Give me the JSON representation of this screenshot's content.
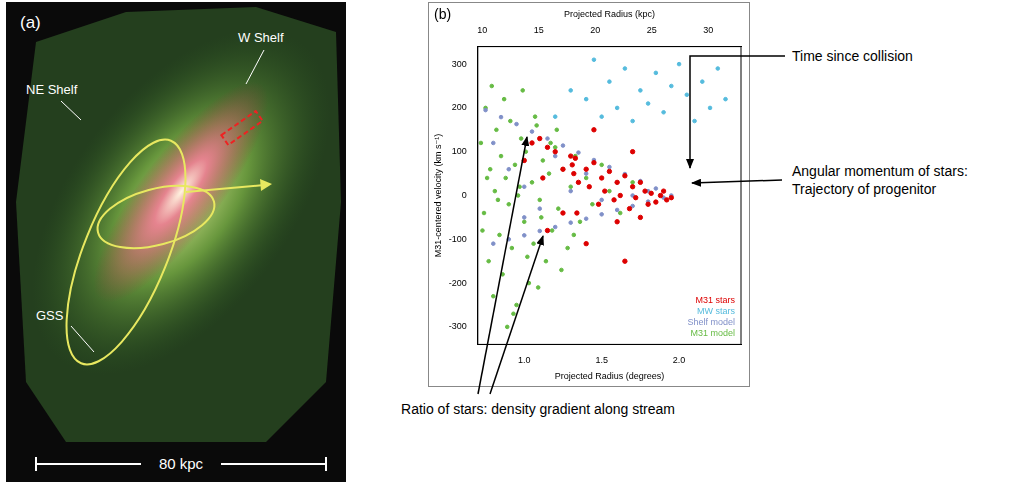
{
  "panel_a": {
    "label": "(a)",
    "labels": {
      "ne": "NE Shelf",
      "w": "W Shelf",
      "gss": "GSS"
    },
    "scale_bar": "80 kpc"
  },
  "chart_data": {
    "type": "scatter",
    "label": "(b)",
    "x_label": "Projected Radius (degrees)",
    "x2_label": "Projected Radius (kpc)",
    "y_label": "M31-centered velocity (km s⁻¹)",
    "xlim": [
      0.7,
      2.4
    ],
    "xticks": [
      {
        "value": 1,
        "label": "1.0"
      },
      {
        "value": 1.5,
        "label": "1.5"
      },
      {
        "value": 2,
        "label": "2.0"
      }
    ],
    "x2lim": [
      9.6,
      32.9
    ],
    "x2ticks": [
      10,
      15,
      20,
      25,
      30
    ],
    "ylim": [
      -340,
      340
    ],
    "yticks": [
      -300,
      -200,
      -100,
      0,
      100,
      200,
      300
    ],
    "grid": false,
    "legend": "lower right",
    "series": [
      {
        "name": "M31 stars",
        "color": "#dd0000",
        "x": [
          1.0,
          1.05,
          1.1,
          1.12,
          1.15,
          1.2,
          1.25,
          1.3,
          1.31,
          1.32,
          1.33,
          1.34,
          1.35,
          1.4,
          1.42,
          1.45,
          1.48,
          1.5,
          1.52,
          1.55,
          1.58,
          1.6,
          1.62,
          1.65,
          1.68,
          1.7,
          1.72,
          1.75,
          1.78,
          1.8,
          1.82,
          1.85,
          1.88,
          1.9,
          1.92,
          1.95,
          1.75,
          1.6,
          1.45,
          1.7,
          1.4,
          1.65,
          1.25,
          1.15
        ],
        "values": [
          80,
          120,
          130,
          40,
          110,
          100,
          60,
          90,
          70,
          50,
          85,
          -40,
          30,
          60,
          20,
          75,
          -20,
          40,
          10,
          55,
          -10,
          30,
          0,
          45,
          -30,
          20,
          -5,
          30,
          10,
          -20,
          5,
          -15,
          0,
          10,
          -10,
          -5,
          -50,
          -60,
          150,
          100,
          -110,
          -150,
          -40,
          -80
        ]
      },
      {
        "name": "MW stars",
        "color": "#55bbdd",
        "x": [
          1.4,
          1.5,
          1.55,
          1.6,
          1.65,
          1.7,
          1.75,
          1.8,
          1.85,
          1.9,
          1.95,
          2.0,
          2.05,
          2.1,
          2.15,
          2.2,
          2.25,
          1.3,
          1.2,
          2.3,
          1.45
        ],
        "values": [
          220,
          180,
          260,
          200,
          290,
          170,
          240,
          210,
          280,
          190,
          250,
          300,
          230,
          170,
          260,
          200,
          290,
          240,
          180,
          220,
          310
        ]
      },
      {
        "name": "Shelf model",
        "color": "#8090c8",
        "x": [
          0.75,
          0.85,
          0.95,
          1.05,
          1.15,
          1.25,
          1.35,
          1.45,
          1.55,
          1.65,
          1.75,
          1.85,
          1.95,
          0.8,
          0.9,
          1.0,
          1.1,
          1.2,
          1.3,
          1.4,
          1.5,
          1.6,
          1.7,
          1.8,
          1.9,
          0.9,
          1.0,
          1.1,
          1.2,
          1.3,
          1.4,
          1.5,
          1.6,
          1.7,
          1.8,
          0.8,
          1.0
        ],
        "values": [
          195,
          179,
          163,
          146,
          130,
          114,
          98,
          81,
          65,
          49,
          33,
          16,
          0,
          -110,
          -100,
          -91,
          -81,
          -72,
          -62,
          -53,
          -43,
          -33,
          -24,
          -14,
          -5,
          60,
          20,
          -30,
          90,
          10,
          50,
          -10,
          30,
          0,
          10,
          120,
          -50
        ]
      },
      {
        "name": "M31 model",
        "color": "#66bb44",
        "x": [
          0.72,
          0.74,
          0.75,
          0.77,
          0.78,
          0.8,
          0.81,
          0.82,
          0.84,
          0.85,
          0.86,
          0.88,
          0.9,
          0.91,
          0.92,
          0.94,
          0.95,
          0.97,
          0.98,
          1.0,
          1.01,
          1.03,
          1.05,
          1.06,
          1.08,
          1.1,
          1.12,
          1.14,
          1.16,
          1.18,
          1.2,
          1.22,
          1.25,
          1.28,
          1.3,
          1.33,
          1.36,
          1.4,
          1.44,
          1.5,
          1.55,
          1.62,
          1.7,
          0.73,
          0.79,
          0.83,
          0.87,
          0.93,
          0.96,
          1.02,
          1.07,
          1.11,
          1.17,
          1.24,
          1.32,
          0.76,
          0.89,
          0.99,
          1.09,
          1.21
        ],
        "values": [
          120,
          -40,
          200,
          -150,
          60,
          -230,
          10,
          150,
          -90,
          90,
          -180,
          40,
          -20,
          170,
          -120,
          70,
          -250,
          20,
          130,
          -60,
          100,
          -200,
          30,
          -110,
          160,
          -10,
          80,
          -150,
          50,
          -80,
          110,
          -30,
          60,
          -120,
          20,
          90,
          -60,
          40,
          -20,
          70,
          10,
          -40,
          30,
          -80,
          250,
          -10,
          220,
          -270,
          0,
          -140,
          180,
          -50,
          120,
          -170,
          -90,
          40,
          -300,
          240,
          -210,
          150
        ]
      }
    ]
  },
  "annotations": {
    "time": "Time since collision",
    "angular": "Angular momentum of stars: Trajectory of progenitor",
    "ratio": "Ratio of stars: density gradient along stream"
  }
}
